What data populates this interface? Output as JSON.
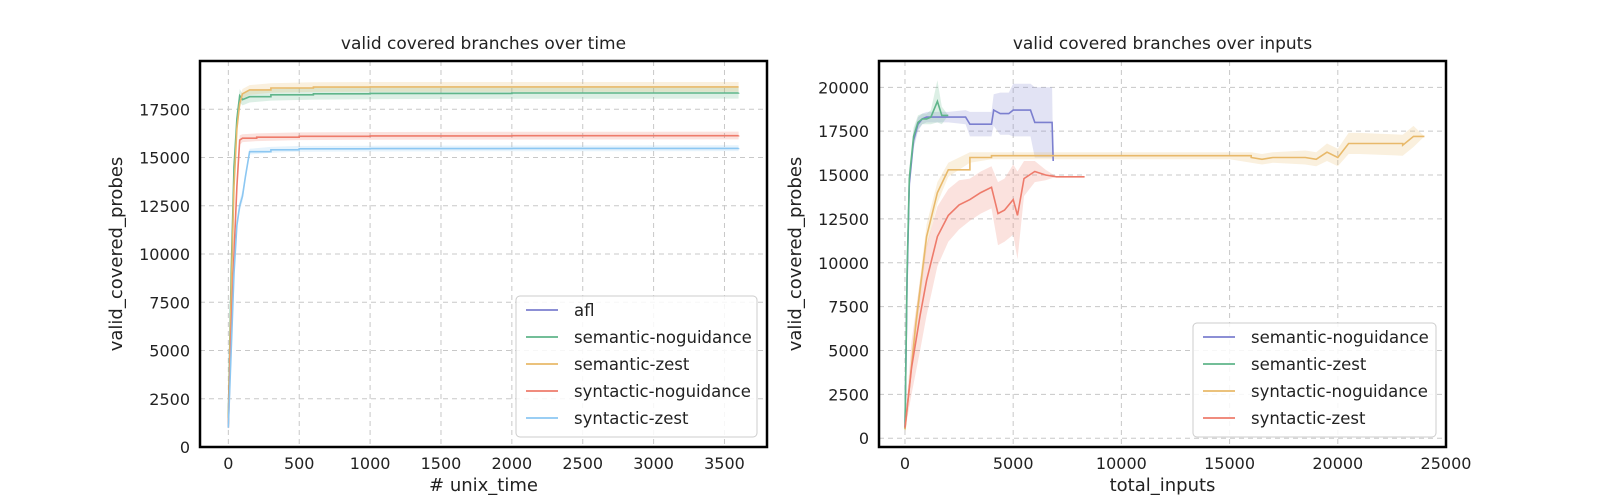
{
  "chart_data": [
    {
      "type": "line",
      "title": "valid covered branches over time",
      "xlabel": "# unix_time",
      "ylabel": "valid_covered_probes",
      "xlim": [
        -200,
        3800
      ],
      "ylim": [
        0,
        20000
      ],
      "xticks": [
        0,
        500,
        1000,
        1500,
        2000,
        2500,
        3000,
        3500
      ],
      "yticks": [
        0,
        2500,
        5000,
        7500,
        10000,
        12500,
        15000,
        17500
      ],
      "grid": true,
      "legend_position": "lower-right",
      "legend": [
        "afl",
        "semantic-noguidance",
        "semantic-zest",
        "syntactic-noguidance",
        "syntactic-zest"
      ],
      "series": [
        {
          "name": "afl",
          "color": "#7b7fcf",
          "x": [],
          "y": []
        },
        {
          "name": "semantic-noguidance",
          "color": "#5fb58a",
          "x": [
            0,
            20,
            40,
            60,
            80,
            100,
            150,
            300,
            600,
            1000,
            2000,
            3600
          ],
          "y": [
            1500,
            9000,
            14500,
            17000,
            18200,
            18000,
            18150,
            18250,
            18300,
            18320,
            18340,
            18350
          ],
          "band": [
            250,
            400,
            400,
            400,
            350,
            300,
            300,
            300,
            300,
            300,
            300,
            300
          ]
        },
        {
          "name": "semantic-zest",
          "color": "#e8b96a",
          "x": [
            0,
            20,
            40,
            60,
            80,
            100,
            150,
            300,
            600,
            1000,
            2000,
            3600
          ],
          "y": [
            1200,
            8000,
            13500,
            16500,
            17800,
            18300,
            18500,
            18600,
            18650,
            18660,
            18660,
            18660
          ],
          "band": [
            300,
            500,
            500,
            400,
            300,
            250,
            250,
            250,
            250,
            250,
            250,
            250
          ]
        },
        {
          "name": "syntactic-noguidance",
          "color": "#ee7b6b",
          "x": [
            0,
            20,
            40,
            60,
            80,
            100,
            200,
            500,
            1000,
            2000,
            3600
          ],
          "y": [
            1000,
            6000,
            10000,
            13500,
            15900,
            16000,
            16050,
            16100,
            16120,
            16130,
            16140
          ],
          "band": [
            200,
            300,
            300,
            300,
            250,
            200,
            200,
            200,
            200,
            200,
            200
          ]
        },
        {
          "name": "syntactic-zest",
          "color": "#8cc7f2",
          "x": [
            0,
            20,
            40,
            60,
            80,
            100,
            120,
            150,
            300,
            500,
            1000,
            2000,
            3600
          ],
          "y": [
            1000,
            5000,
            9000,
            11500,
            12500,
            13000,
            14000,
            15300,
            15400,
            15450,
            15460,
            15470,
            15480
          ],
          "band": [
            200,
            300,
            300,
            300,
            300,
            300,
            200,
            150,
            150,
            150,
            150,
            150,
            150
          ]
        }
      ]
    },
    {
      "type": "line",
      "title": "valid covered branches over inputs",
      "xlabel": "total_inputs",
      "ylabel": "valid_covered_probes",
      "xlim": [
        -1200,
        25000
      ],
      "ylim": [
        -500,
        21500
      ],
      "xticks": [
        0,
        5000,
        10000,
        15000,
        20000,
        25000
      ],
      "yticks": [
        0,
        2500,
        5000,
        7500,
        10000,
        12500,
        15000,
        17500,
        20000
      ],
      "grid": true,
      "legend_position": "lower-right",
      "legend": [
        "semantic-noguidance",
        "semantic-zest",
        "syntactic-noguidance",
        "syntactic-zest"
      ],
      "series": [
        {
          "name": "semantic-noguidance",
          "color": "#7b7fcf",
          "x": [
            0,
            100,
            200,
            400,
            600,
            800,
            1000,
            1500,
            2000,
            2800,
            3000,
            4000,
            4100,
            4400,
            4800,
            5000,
            5800,
            6000,
            6800,
            6850
          ],
          "y": [
            600,
            9000,
            14500,
            17000,
            17900,
            18200,
            18300,
            18300,
            18300,
            18300,
            17900,
            17900,
            18700,
            18500,
            18500,
            18700,
            18700,
            18000,
            18000,
            15800
          ],
          "band": [
            200,
            600,
            600,
            500,
            400,
            300,
            300,
            300,
            300,
            400,
            700,
            700,
            900,
            1200,
            1200,
            1500,
            1500,
            2000,
            2000,
            0
          ]
        },
        {
          "name": "semantic-zest",
          "color": "#5fb58a",
          "x": [
            0,
            100,
            200,
            400,
            600,
            800,
            1000,
            1200,
            1500,
            1700,
            2000
          ],
          "y": [
            500,
            9500,
            14800,
            17200,
            18000,
            18200,
            18200,
            18300,
            19200,
            18400,
            18400
          ],
          "band": [
            200,
            700,
            600,
            500,
            400,
            300,
            300,
            400,
            1200,
            500,
            0
          ]
        },
        {
          "name": "syntactic-noguidance",
          "color": "#e8b96a",
          "x": [
            0,
            500,
            1000,
            1500,
            2000,
            3000,
            4000,
            8000,
            12000,
            15000,
            16000,
            16500,
            17000,
            18500,
            19000,
            19500,
            20000,
            20500,
            21000,
            23000,
            23500,
            24000
          ],
          "y": [
            500,
            6500,
            11500,
            14000,
            15300,
            16000,
            16100,
            16100,
            16100,
            16100,
            16000,
            15900,
            16000,
            16000,
            15900,
            16300,
            16000,
            16800,
            16800,
            16700,
            17200,
            17200
          ],
          "band": [
            200,
            600,
            700,
            600,
            400,
            300,
            200,
            200,
            200,
            200,
            300,
            300,
            300,
            400,
            400,
            500,
            500,
            600,
            600,
            600,
            600,
            0
          ]
        },
        {
          "name": "syntactic-zest",
          "color": "#ee7b6b",
          "x": [
            0,
            300,
            700,
            1000,
            1500,
            2000,
            2500,
            3000,
            3500,
            4000,
            4300,
            4600,
            5000,
            5200,
            5500,
            6000,
            6500,
            7000,
            8300
          ],
          "y": [
            600,
            4000,
            7000,
            9000,
            11500,
            12700,
            13300,
            13600,
            14000,
            14300,
            12800,
            13000,
            13600,
            12700,
            14800,
            15200,
            15000,
            14900,
            14900
          ],
          "band": [
            200,
            1500,
            2000,
            2000,
            1700,
            1500,
            1400,
            1200,
            1200,
            1200,
            1800,
            1800,
            2000,
            2500,
            1000,
            600,
            300,
            0,
            0
          ]
        }
      ]
    }
  ]
}
